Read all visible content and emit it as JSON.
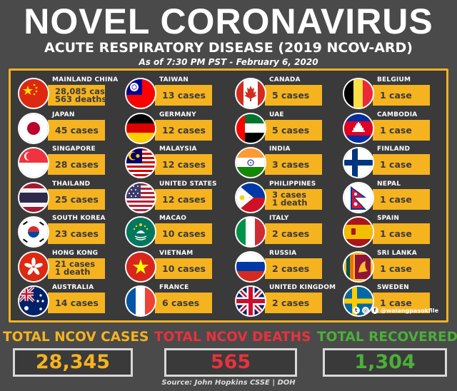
{
  "header": {
    "title": "NOVEL CORONAVIRUS",
    "subtitle": "ACUTE RESPIRATORY DISEASE (2019 NCOV-ARD)",
    "as_of": "As of 7:30 PM PST - February 6, 2020"
  },
  "columns": [
    [
      {
        "country": "MAINLAND CHINA",
        "line1": "28,085 cases",
        "line2": "563 deaths",
        "flag": "china-flag-icon"
      },
      {
        "country": "JAPAN",
        "line1": "45 cases",
        "line2": "",
        "flag": "japan-flag-icon"
      },
      {
        "country": "SINGAPORE",
        "line1": "28 cases",
        "line2": "",
        "flag": "singapore-flag-icon"
      },
      {
        "country": "THAILAND",
        "line1": "25 cases",
        "line2": "",
        "flag": "thailand-flag-icon"
      },
      {
        "country": "SOUTH KOREA",
        "line1": "23 cases",
        "line2": "",
        "flag": "south-korea-flag-icon"
      },
      {
        "country": "HONG KONG",
        "line1": "21 cases",
        "line2": "1 death",
        "flag": "hong-kong-flag-icon"
      },
      {
        "country": "AUSTRALIA",
        "line1": "14 cases",
        "line2": "",
        "flag": "australia-flag-icon"
      }
    ],
    [
      {
        "country": "TAIWAN",
        "line1": "13 cases",
        "line2": "",
        "flag": "taiwan-flag-icon"
      },
      {
        "country": "GERMANY",
        "line1": "12 cases",
        "line2": "",
        "flag": "germany-flag-icon"
      },
      {
        "country": "MALAYSIA",
        "line1": "12 cases",
        "line2": "",
        "flag": "malaysia-flag-icon"
      },
      {
        "country": "UNITED STATES",
        "line1": "12 cases",
        "line2": "",
        "flag": "usa-flag-icon"
      },
      {
        "country": "MACAO",
        "line1": "10 cases",
        "line2": "",
        "flag": "macao-flag-icon"
      },
      {
        "country": "VIETNAM",
        "line1": "10 cases",
        "line2": "",
        "flag": "vietnam-flag-icon"
      },
      {
        "country": "FRANCE",
        "line1": "6 cases",
        "line2": "",
        "flag": "france-flag-icon"
      }
    ],
    [
      {
        "country": "CANADA",
        "line1": "5 cases",
        "line2": "",
        "flag": "canada-flag-icon"
      },
      {
        "country": "UAE",
        "line1": "5 cases",
        "line2": "",
        "flag": "uae-flag-icon"
      },
      {
        "country": "INDIA",
        "line1": "3 cases",
        "line2": "",
        "flag": "india-flag-icon"
      },
      {
        "country": "PHILIPPINES",
        "line1": "3 cases",
        "line2": "1 death",
        "flag": "philippines-flag-icon"
      },
      {
        "country": "ITALY",
        "line1": "2 cases",
        "line2": "",
        "flag": "italy-flag-icon"
      },
      {
        "country": "RUSSIA",
        "line1": "2 cases",
        "line2": "",
        "flag": "russia-flag-icon"
      },
      {
        "country": "UNITED KINGDOM",
        "line1": "2 cases",
        "line2": "",
        "flag": "uk-flag-icon"
      }
    ],
    [
      {
        "country": "BELGIUM",
        "line1": "1 case",
        "line2": "",
        "flag": "belgium-flag-icon"
      },
      {
        "country": "CAMBODIA",
        "line1": "1 case",
        "line2": "",
        "flag": "cambodia-flag-icon"
      },
      {
        "country": "FINLAND",
        "line1": "1 case",
        "line2": "",
        "flag": "finland-flag-icon"
      },
      {
        "country": "NEPAL",
        "line1": "1 case",
        "line2": "",
        "flag": "nepal-flag-icon"
      },
      {
        "country": "SPAIN",
        "line1": "1 case",
        "line2": "",
        "flag": "spain-flag-icon"
      },
      {
        "country": "SRI LANKA",
        "line1": "1 case",
        "line2": "",
        "flag": "sri-lanka-flag-icon"
      },
      {
        "country": "SWEDEN",
        "line1": "1 case",
        "line2": "",
        "flag": "sweden-flag-icon"
      }
    ]
  ],
  "credit": {
    "handle": "@walangpasokfile",
    "icons": [
      "twitter-icon",
      "instagram-icon",
      "facebook-icon"
    ]
  },
  "totals": {
    "cases_label": "TOTAL NCOV CASES",
    "cases_value": "28,345",
    "cases_color": "#f5b320",
    "deaths_label": "TOTAL NCOV DEATHS",
    "deaths_value": "565",
    "deaths_color": "#e8323c",
    "recovered_label": "TOTAL RECOVERED",
    "recovered_value": "1,304",
    "recovered_color": "#4caf3a"
  },
  "source": "Source: John Hopkins CSSE | DOH"
}
